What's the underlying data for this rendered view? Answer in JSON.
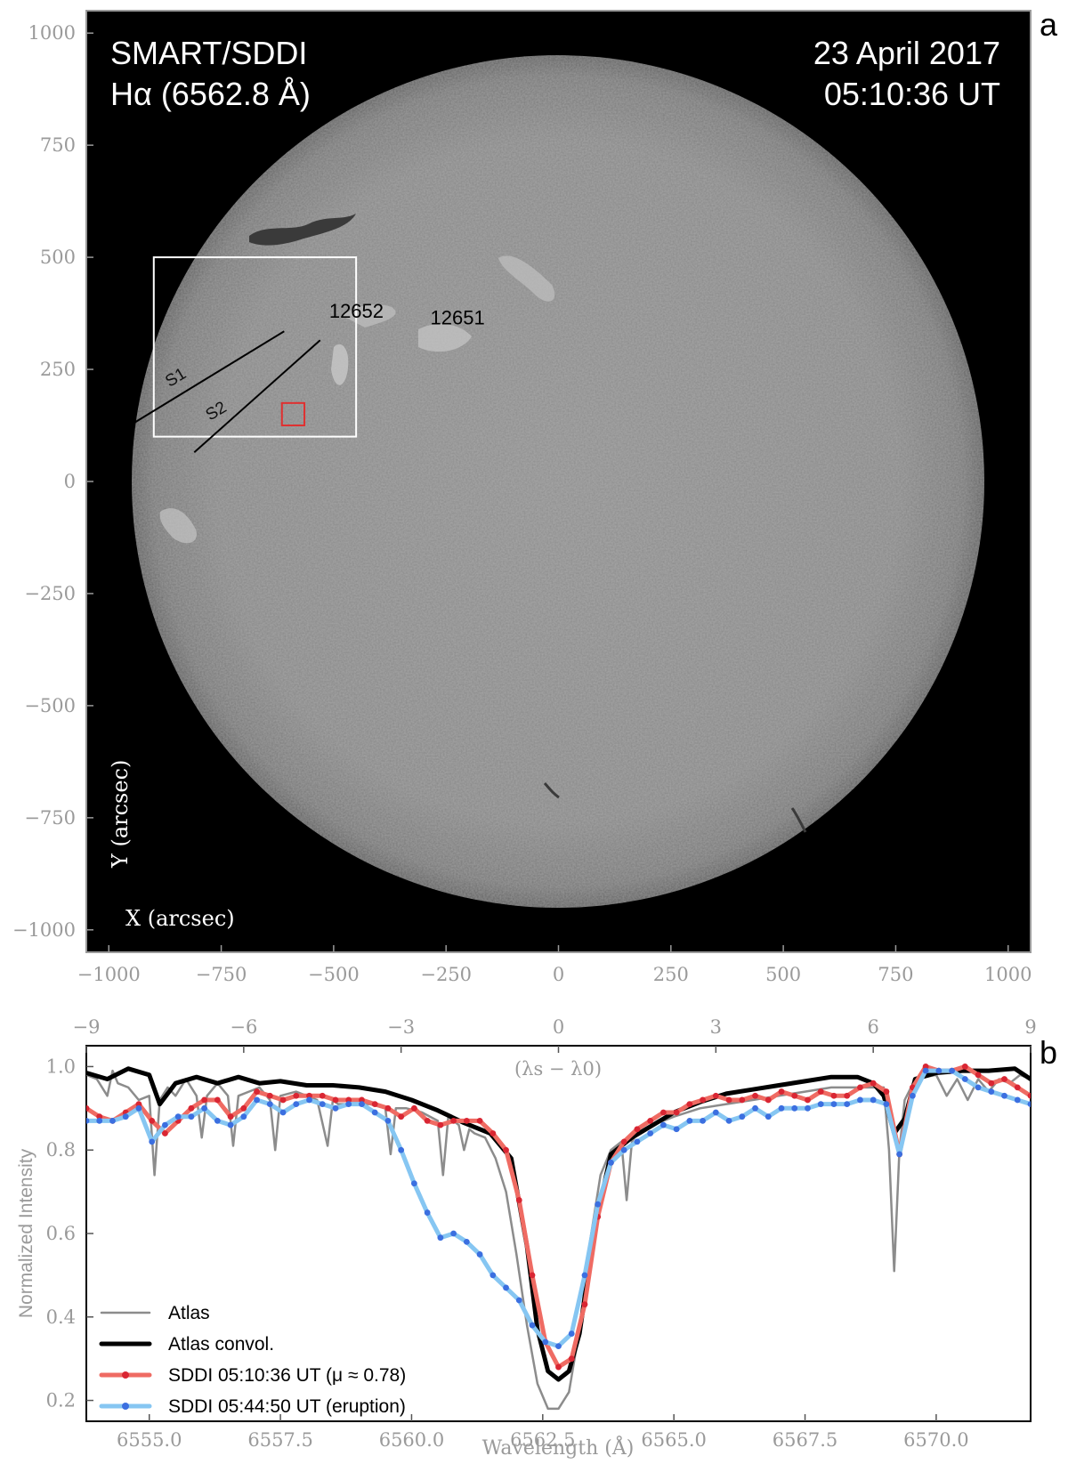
{
  "panel_a": {
    "letter": "a",
    "instrument": "SMART/SDDI",
    "line_label": "Hα (6562.8 Å)",
    "date": "23 April 2017",
    "time": "05:10:36 UT",
    "ylabel": "Y (arcsec)",
    "xlabel": "X (arcsec)",
    "active_regions": [
      "12652",
      "12651"
    ],
    "slits": [
      "S1",
      "S2"
    ],
    "colors": {
      "background": "#000000",
      "disk": "#8a8a8a",
      "box": "#ffffff",
      "marker_box": "#e03030"
    }
  },
  "panel_b": {
    "letter": "b"
  },
  "chart_data": [
    {
      "type": "image",
      "panel": "a",
      "title": "SMART/SDDI Hα (6562.8 Å)",
      "xlabel": "X (arcsec)",
      "ylabel": "Y (arcsec)",
      "xlim": [
        -1050,
        1050
      ],
      "ylim": [
        -1050,
        1050
      ],
      "xticks": [
        -1000,
        -750,
        -500,
        -250,
        0,
        250,
        500,
        750,
        1000
      ],
      "yticks": [
        1000,
        750,
        500,
        250,
        0,
        -250,
        -500,
        -750,
        -1000
      ],
      "xtick_labels": [
        "−1000",
        "−750",
        "−500",
        "−250",
        "0",
        "250",
        "500",
        "750",
        "1000"
      ],
      "ytick_labels": [
        "1000",
        "750",
        "500",
        "250",
        "0",
        "−250",
        "−500",
        "−750",
        "−1000"
      ],
      "solar_radius_arcsec": 950,
      "box_region": {
        "x": [
          -900,
          -450
        ],
        "y": [
          100,
          500
        ]
      },
      "small_box": {
        "x": [
          -615,
          -565
        ],
        "y": [
          125,
          175
        ]
      },
      "slit_S1": [
        [
          -945,
          130
        ],
        [
          -610,
          335
        ]
      ],
      "slit_S2": [
        [
          -810,
          65
        ],
        [
          -530,
          315
        ]
      ],
      "labels": [
        {
          "text": "12652",
          "x": -510,
          "y": 365
        },
        {
          "text": "12651",
          "x": -285,
          "y": 350
        },
        {
          "text": "S1",
          "x": -865,
          "y": 210
        },
        {
          "text": "S2",
          "x": -775,
          "y": 135
        }
      ]
    },
    {
      "type": "line",
      "panel": "b",
      "xlabel": "Wavelength (Å)",
      "ylabel": "Normalized Intensity",
      "top_axis_label": "(λs − λ0)",
      "xlim": [
        6553.8,
        6571.8
      ],
      "ylim": [
        0.15,
        1.05
      ],
      "xticks": [
        6555.0,
        6557.5,
        6560.0,
        6562.5,
        6565.0,
        6567.5,
        6570.0
      ],
      "xtick_labels": [
        "6555.0",
        "6557.5",
        "6560.0",
        "6562.5",
        "6565.0",
        "6567.5",
        "6570.0"
      ],
      "yticks": [
        0.2,
        0.4,
        0.6,
        0.8,
        1.0
      ],
      "ytick_labels": [
        "0.2",
        "0.4",
        "0.6",
        "0.8",
        "1.0"
      ],
      "top_ticks": [
        -9,
        -6,
        -3,
        0,
        3,
        6,
        9
      ],
      "top_tick_labels": [
        "−9",
        "−6",
        "−3",
        "0",
        "3",
        "6",
        "9"
      ],
      "line_center": 6562.8,
      "legend_position": "lower-left",
      "series": [
        {
          "name": "Atlas",
          "color": "#8c8c8c",
          "markers": false,
          "x": [
            6553.8,
            6554.0,
            6554.2,
            6554.3,
            6554.4,
            6554.6,
            6554.8,
            6555.0,
            6555.1,
            6555.2,
            6555.35,
            6555.5,
            6555.7,
            6555.9,
            6556.0,
            6556.1,
            6556.3,
            6556.5,
            6556.6,
            6556.7,
            6556.9,
            6557.1,
            6557.3,
            6557.4,
            6557.5,
            6557.8,
            6558.0,
            6558.2,
            6558.4,
            6558.5,
            6558.6,
            6558.9,
            6559.2,
            6559.5,
            6559.6,
            6559.7,
            6559.9,
            6560.2,
            6560.5,
            6560.6,
            6560.7,
            6560.9,
            6561.0,
            6561.1,
            6561.2,
            6561.4,
            6561.6,
            6561.8,
            6562.0,
            6562.2,
            6562.4,
            6562.6,
            6562.8,
            6563.0,
            6563.2,
            6563.4,
            6563.6,
            6563.8,
            6564.0,
            6564.1,
            6564.2,
            6564.3,
            6564.6,
            6565.0,
            6565.5,
            6566.0,
            6566.5,
            6567.0,
            6567.5,
            6568.0,
            6568.5,
            6569.0,
            6569.1,
            6569.2,
            6569.3,
            6569.4,
            6569.6,
            6570.0,
            6570.2,
            6570.4,
            6570.6,
            6570.8,
            6571.0,
            6571.2,
            6571.4,
            6571.6,
            6571.8
          ],
          "y": [
            0.98,
            0.97,
            0.93,
            0.99,
            0.96,
            0.95,
            0.92,
            0.93,
            0.74,
            0.92,
            0.95,
            0.93,
            0.97,
            0.93,
            0.83,
            0.93,
            0.96,
            0.93,
            0.81,
            0.93,
            0.94,
            0.95,
            0.92,
            0.8,
            0.93,
            0.94,
            0.93,
            0.92,
            0.81,
            0.92,
            0.91,
            0.91,
            0.91,
            0.9,
            0.79,
            0.9,
            0.9,
            0.89,
            0.87,
            0.74,
            0.88,
            0.86,
            0.8,
            0.85,
            0.84,
            0.83,
            0.78,
            0.7,
            0.55,
            0.38,
            0.24,
            0.18,
            0.18,
            0.22,
            0.37,
            0.58,
            0.74,
            0.8,
            0.82,
            0.68,
            0.82,
            0.84,
            0.86,
            0.88,
            0.9,
            0.91,
            0.92,
            0.93,
            0.94,
            0.95,
            0.95,
            0.95,
            0.8,
            0.51,
            0.8,
            0.92,
            0.97,
            0.98,
            0.93,
            0.97,
            0.92,
            0.97,
            0.94,
            0.97,
            0.96,
            0.98,
            0.97
          ]
        },
        {
          "name": "Atlas convol.",
          "color": "#000000",
          "markers": false,
          "x": [
            6553.8,
            6554.2,
            6554.6,
            6555.0,
            6555.2,
            6555.5,
            6555.9,
            6556.3,
            6556.7,
            6557.1,
            6557.5,
            6558.0,
            6558.5,
            6559.0,
            6559.5,
            6560.0,
            6560.5,
            6561.0,
            6561.5,
            6561.9,
            6562.2,
            6562.4,
            6562.6,
            6562.8,
            6563.0,
            6563.2,
            6563.5,
            6563.8,
            6564.2,
            6564.6,
            6565.0,
            6565.5,
            6566.0,
            6566.5,
            6567.0,
            6567.5,
            6568.0,
            6568.5,
            6568.8,
            6569.0,
            6569.2,
            6569.4,
            6569.6,
            6570.0,
            6570.5,
            6571.0,
            6571.5,
            6571.8
          ],
          "y": [
            0.985,
            0.97,
            0.995,
            0.98,
            0.91,
            0.96,
            0.975,
            0.96,
            0.975,
            0.96,
            0.965,
            0.955,
            0.955,
            0.95,
            0.94,
            0.92,
            0.895,
            0.865,
            0.84,
            0.78,
            0.57,
            0.37,
            0.27,
            0.25,
            0.27,
            0.36,
            0.62,
            0.79,
            0.83,
            0.86,
            0.89,
            0.915,
            0.935,
            0.945,
            0.955,
            0.965,
            0.975,
            0.975,
            0.96,
            0.93,
            0.84,
            0.875,
            0.97,
            0.985,
            0.99,
            0.99,
            0.995,
            0.97
          ]
        },
        {
          "name": "SDDI 05:10:36 UT (μ ≈ 0.78)",
          "color": "#ef6b63",
          "marker_color": "#d92633",
          "markers": true,
          "x": [
            6553.8,
            6554.05,
            6554.3,
            6554.55,
            6554.8,
            6555.05,
            6555.3,
            6555.55,
            6555.8,
            6556.05,
            6556.3,
            6556.55,
            6556.8,
            6557.05,
            6557.3,
            6557.55,
            6557.8,
            6558.05,
            6558.3,
            6558.55,
            6558.8,
            6559.05,
            6559.3,
            6559.55,
            6559.8,
            6560.05,
            6560.3,
            6560.55,
            6560.8,
            6561.05,
            6561.3,
            6561.55,
            6561.8,
            6562.05,
            6562.3,
            6562.55,
            6562.8,
            6563.05,
            6563.3,
            6563.55,
            6563.8,
            6564.05,
            6564.3,
            6564.55,
            6564.8,
            6565.05,
            6565.3,
            6565.55,
            6565.8,
            6566.05,
            6566.3,
            6566.55,
            6566.8,
            6567.05,
            6567.3,
            6567.55,
            6567.8,
            6568.05,
            6568.3,
            6568.55,
            6568.8,
            6569.05,
            6569.3,
            6569.55,
            6569.8,
            6570.05,
            6570.3,
            6570.55,
            6570.8,
            6571.05,
            6571.3,
            6571.55,
            6571.8
          ],
          "y": [
            0.9,
            0.88,
            0.87,
            0.89,
            0.91,
            0.87,
            0.84,
            0.87,
            0.9,
            0.92,
            0.92,
            0.88,
            0.9,
            0.94,
            0.93,
            0.92,
            0.93,
            0.93,
            0.93,
            0.92,
            0.92,
            0.92,
            0.91,
            0.9,
            0.88,
            0.9,
            0.87,
            0.86,
            0.87,
            0.87,
            0.87,
            0.84,
            0.8,
            0.68,
            0.5,
            0.34,
            0.28,
            0.3,
            0.43,
            0.64,
            0.77,
            0.82,
            0.85,
            0.87,
            0.89,
            0.89,
            0.91,
            0.92,
            0.93,
            0.92,
            0.92,
            0.93,
            0.92,
            0.94,
            0.93,
            0.92,
            0.94,
            0.93,
            0.93,
            0.95,
            0.96,
            0.94,
            0.79,
            0.95,
            1.0,
            0.99,
            0.99,
            1.0,
            0.98,
            0.96,
            0.97,
            0.95,
            0.93
          ]
        },
        {
          "name": "SDDI 05:44:50 UT (eruption)",
          "color": "#86c6f2",
          "marker_color": "#3b6fe0",
          "markers": true,
          "x": [
            6553.8,
            6554.05,
            6554.3,
            6554.55,
            6554.8,
            6555.05,
            6555.3,
            6555.55,
            6555.8,
            6556.05,
            6556.3,
            6556.55,
            6556.8,
            6557.05,
            6557.3,
            6557.55,
            6557.8,
            6558.05,
            6558.3,
            6558.55,
            6558.8,
            6559.05,
            6559.3,
            6559.55,
            6559.8,
            6560.05,
            6560.3,
            6560.55,
            6560.8,
            6561.05,
            6561.3,
            6561.55,
            6561.8,
            6562.05,
            6562.3,
            6562.55,
            6562.8,
            6563.05,
            6563.3,
            6563.55,
            6563.8,
            6564.05,
            6564.3,
            6564.55,
            6564.8,
            6565.05,
            6565.3,
            6565.55,
            6565.8,
            6566.05,
            6566.3,
            6566.55,
            6566.8,
            6567.05,
            6567.3,
            6567.55,
            6567.8,
            6568.05,
            6568.3,
            6568.55,
            6568.8,
            6569.05,
            6569.3,
            6569.55,
            6569.8,
            6570.05,
            6570.3,
            6570.55,
            6570.8,
            6571.05,
            6571.3,
            6571.55,
            6571.8
          ],
          "y": [
            0.87,
            0.87,
            0.87,
            0.88,
            0.9,
            0.82,
            0.86,
            0.88,
            0.88,
            0.9,
            0.87,
            0.86,
            0.88,
            0.92,
            0.91,
            0.89,
            0.91,
            0.92,
            0.91,
            0.9,
            0.91,
            0.91,
            0.89,
            0.87,
            0.8,
            0.72,
            0.65,
            0.59,
            0.6,
            0.58,
            0.55,
            0.5,
            0.47,
            0.44,
            0.38,
            0.34,
            0.33,
            0.36,
            0.5,
            0.67,
            0.77,
            0.8,
            0.82,
            0.84,
            0.86,
            0.85,
            0.87,
            0.87,
            0.89,
            0.87,
            0.88,
            0.9,
            0.88,
            0.9,
            0.9,
            0.9,
            0.91,
            0.91,
            0.91,
            0.92,
            0.92,
            0.91,
            0.79,
            0.93,
            0.99,
            0.99,
            0.99,
            0.97,
            0.95,
            0.94,
            0.93,
            0.92,
            0.91
          ]
        }
      ]
    }
  ]
}
